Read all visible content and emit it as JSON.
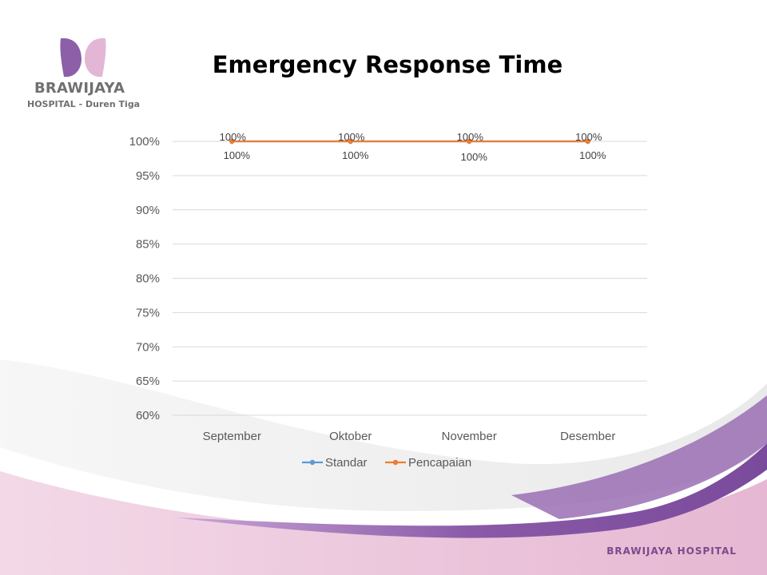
{
  "slide": {
    "title": "Emergency Response Time",
    "footer_brand": "BRAWIJAYA HOSPITAL"
  },
  "logo": {
    "name": "BRAWIJAYA",
    "subtitle": "HOSPITAL - Duren Tiga"
  },
  "colors": {
    "standar": "#5b9bd5",
    "pencapaian": "#ed7d31",
    "gridline": "#d9d9d9",
    "brand_purple_dark": "#7b4f9e",
    "brand_purple_light": "#e3b6d6"
  },
  "chart_data": {
    "type": "line",
    "title": "Emergency Response Time",
    "categories": [
      "September",
      "Oktober",
      "November",
      "Desember"
    ],
    "series": [
      {
        "name": "Standar",
        "values": [
          100,
          100,
          100,
          100
        ],
        "data_labels": [
          "100%",
          "100%",
          "100%",
          "100%"
        ]
      },
      {
        "name": "Pencapaian",
        "values": [
          100,
          100,
          100,
          100
        ],
        "data_labels": [
          "100%",
          "100%",
          "100%",
          "100%"
        ]
      }
    ],
    "ylim": [
      60,
      100
    ],
    "yticks": [
      "60%",
      "65%",
      "70%",
      "75%",
      "80%",
      "85%",
      "90%",
      "95%",
      "100%"
    ],
    "y_unit": "%",
    "grid": true,
    "legend": "bottom"
  }
}
